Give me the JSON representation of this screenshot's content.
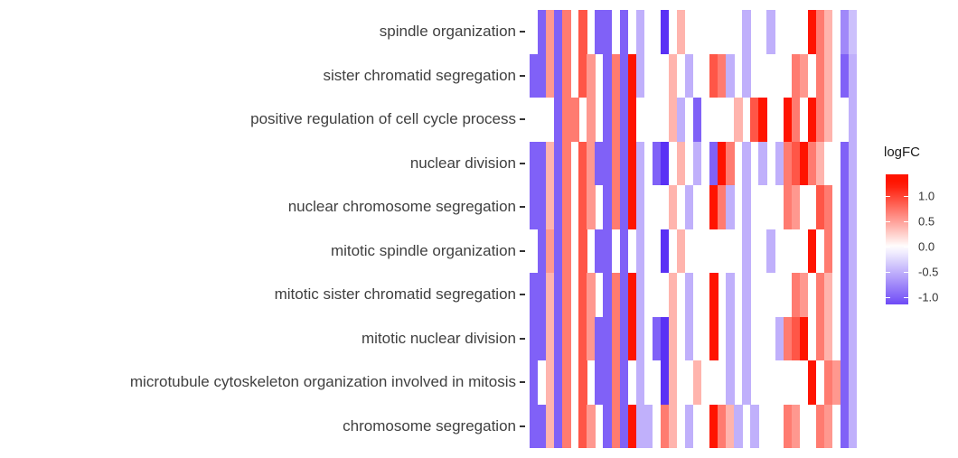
{
  "chart_data": {
    "type": "heatmap",
    "title": "",
    "xlabel": "",
    "ylabel": "",
    "x_tick_labels_visible": false,
    "n_columns": 40,
    "y_categories": [
      "spindle organization",
      "sister chromatid segregation",
      "positive regulation of cell cycle process",
      "nuclear division",
      "nuclear chromosome segregation",
      "mitotic spindle organization",
      "mitotic sister chromatid segregation",
      "mitotic nuclear division",
      "microtubule cytoskeleton organization involved in mitosis",
      "chromosome segregation"
    ],
    "legend": {
      "title": "logFC",
      "tick_labels": [
        "1.0",
        "0.5",
        "0.0",
        "-0.5",
        "-1.0"
      ],
      "tick_values": [
        1.0,
        0.5,
        0.0,
        -0.5,
        -1.0
      ],
      "bar_value_top": 1.43,
      "bar_value_bottom": -1.14,
      "high_color": "#ff1400",
      "mid_color": "#ffffff",
      "low_color": "#5a31f5",
      "position": "right"
    },
    "value_domain": [
      -1.3,
      1.25
    ],
    "matrix": [
      [
        null,
        -1,
        0.55,
        -1,
        0.7,
        null,
        0.9,
        null,
        -1,
        -1,
        null,
        -1,
        null,
        -0.5,
        null,
        null,
        -1.3,
        null,
        0.4,
        null,
        null,
        null,
        null,
        null,
        null,
        null,
        -0.5,
        null,
        null,
        -0.5,
        null,
        null,
        null,
        null,
        1.25,
        0.7,
        0.4,
        null,
        -0.75,
        -0.4
      ],
      [
        -1,
        -1,
        0.55,
        -1,
        0.7,
        null,
        0.9,
        0.55,
        null,
        -1,
        0.7,
        -1,
        1.25,
        -0.5,
        null,
        null,
        null,
        0.4,
        null,
        -0.5,
        null,
        null,
        0.9,
        0.7,
        -0.5,
        null,
        -0.5,
        null,
        null,
        null,
        null,
        null,
        0.7,
        0.55,
        null,
        0.7,
        0.4,
        null,
        -1,
        -0.5
      ],
      [
        null,
        null,
        null,
        -1,
        0.7,
        0.7,
        null,
        0.55,
        null,
        -1,
        0.7,
        -1,
        1.25,
        null,
        null,
        null,
        null,
        0.4,
        -0.5,
        null,
        -1,
        null,
        null,
        null,
        null,
        0.4,
        null,
        0.9,
        1.25,
        null,
        null,
        1.25,
        0.7,
        null,
        1.25,
        0.7,
        0.4,
        null,
        null,
        -0.5
      ],
      [
        -1,
        -1,
        0.4,
        -1,
        0.7,
        null,
        0.9,
        0.55,
        -1,
        -1,
        0.7,
        -1,
        1.25,
        -0.5,
        null,
        -1,
        -1.3,
        null,
        0.4,
        null,
        -0.5,
        null,
        -1,
        1.25,
        0.7,
        null,
        -0.5,
        null,
        -0.5,
        null,
        -0.5,
        0.7,
        0.9,
        1.25,
        0.7,
        0.4,
        null,
        null,
        -1,
        -0.5
      ],
      [
        -1,
        -1,
        0.4,
        -1,
        0.7,
        null,
        0.9,
        0.55,
        null,
        -1,
        0.7,
        -1,
        1.25,
        -0.5,
        null,
        null,
        null,
        0.4,
        null,
        -0.5,
        null,
        null,
        1.25,
        0.7,
        -0.5,
        null,
        -0.5,
        null,
        null,
        null,
        null,
        0.7,
        0.55,
        null,
        null,
        0.9,
        0.7,
        null,
        -1,
        -0.5
      ],
      [
        null,
        -1,
        0.55,
        -1,
        0.7,
        null,
        0.9,
        null,
        -1,
        -1,
        null,
        -1,
        null,
        -0.5,
        null,
        null,
        -1.3,
        null,
        0.4,
        null,
        null,
        null,
        null,
        null,
        null,
        null,
        -0.5,
        null,
        null,
        -0.5,
        null,
        null,
        null,
        null,
        1.25,
        null,
        0.7,
        null,
        -1,
        -0.5
      ],
      [
        -1,
        -1,
        0.4,
        -1,
        0.7,
        null,
        0.9,
        0.55,
        null,
        -1,
        0.7,
        -1,
        1.25,
        -0.5,
        null,
        null,
        null,
        0.4,
        null,
        -0.5,
        null,
        null,
        1.25,
        null,
        -0.5,
        null,
        -0.5,
        null,
        null,
        null,
        null,
        null,
        0.7,
        0.55,
        null,
        0.7,
        0.4,
        null,
        -1,
        -0.5
      ],
      [
        -1,
        -1,
        0.4,
        -1,
        0.7,
        null,
        0.9,
        0.55,
        -1,
        -1,
        0.7,
        -1,
        1.25,
        -0.5,
        null,
        -1,
        -1.3,
        0.4,
        null,
        -0.5,
        null,
        null,
        1.25,
        null,
        -0.5,
        null,
        -0.5,
        null,
        null,
        null,
        -0.5,
        0.7,
        0.9,
        1.25,
        null,
        0.7,
        0.4,
        null,
        -1,
        -0.5
      ],
      [
        -1,
        null,
        0.4,
        -1,
        0.7,
        null,
        0.9,
        null,
        -1,
        -1,
        0.7,
        -1,
        null,
        -0.5,
        null,
        null,
        -1.3,
        0.4,
        null,
        null,
        0.4,
        null,
        null,
        null,
        -0.5,
        null,
        -0.5,
        null,
        null,
        null,
        null,
        null,
        null,
        null,
        1.25,
        null,
        0.7,
        0.55,
        -1,
        -0.5
      ],
      [
        -1,
        -1,
        0.4,
        -1,
        0.7,
        null,
        0.9,
        0.55,
        null,
        -1,
        0.7,
        -1,
        1.25,
        -0.5,
        -0.5,
        null,
        0.7,
        0.4,
        null,
        -0.5,
        null,
        null,
        1.25,
        0.7,
        0.4,
        -0.5,
        null,
        -0.5,
        null,
        null,
        null,
        0.7,
        0.55,
        null,
        null,
        0.7,
        0.55,
        null,
        -1,
        -0.5
      ]
    ]
  }
}
